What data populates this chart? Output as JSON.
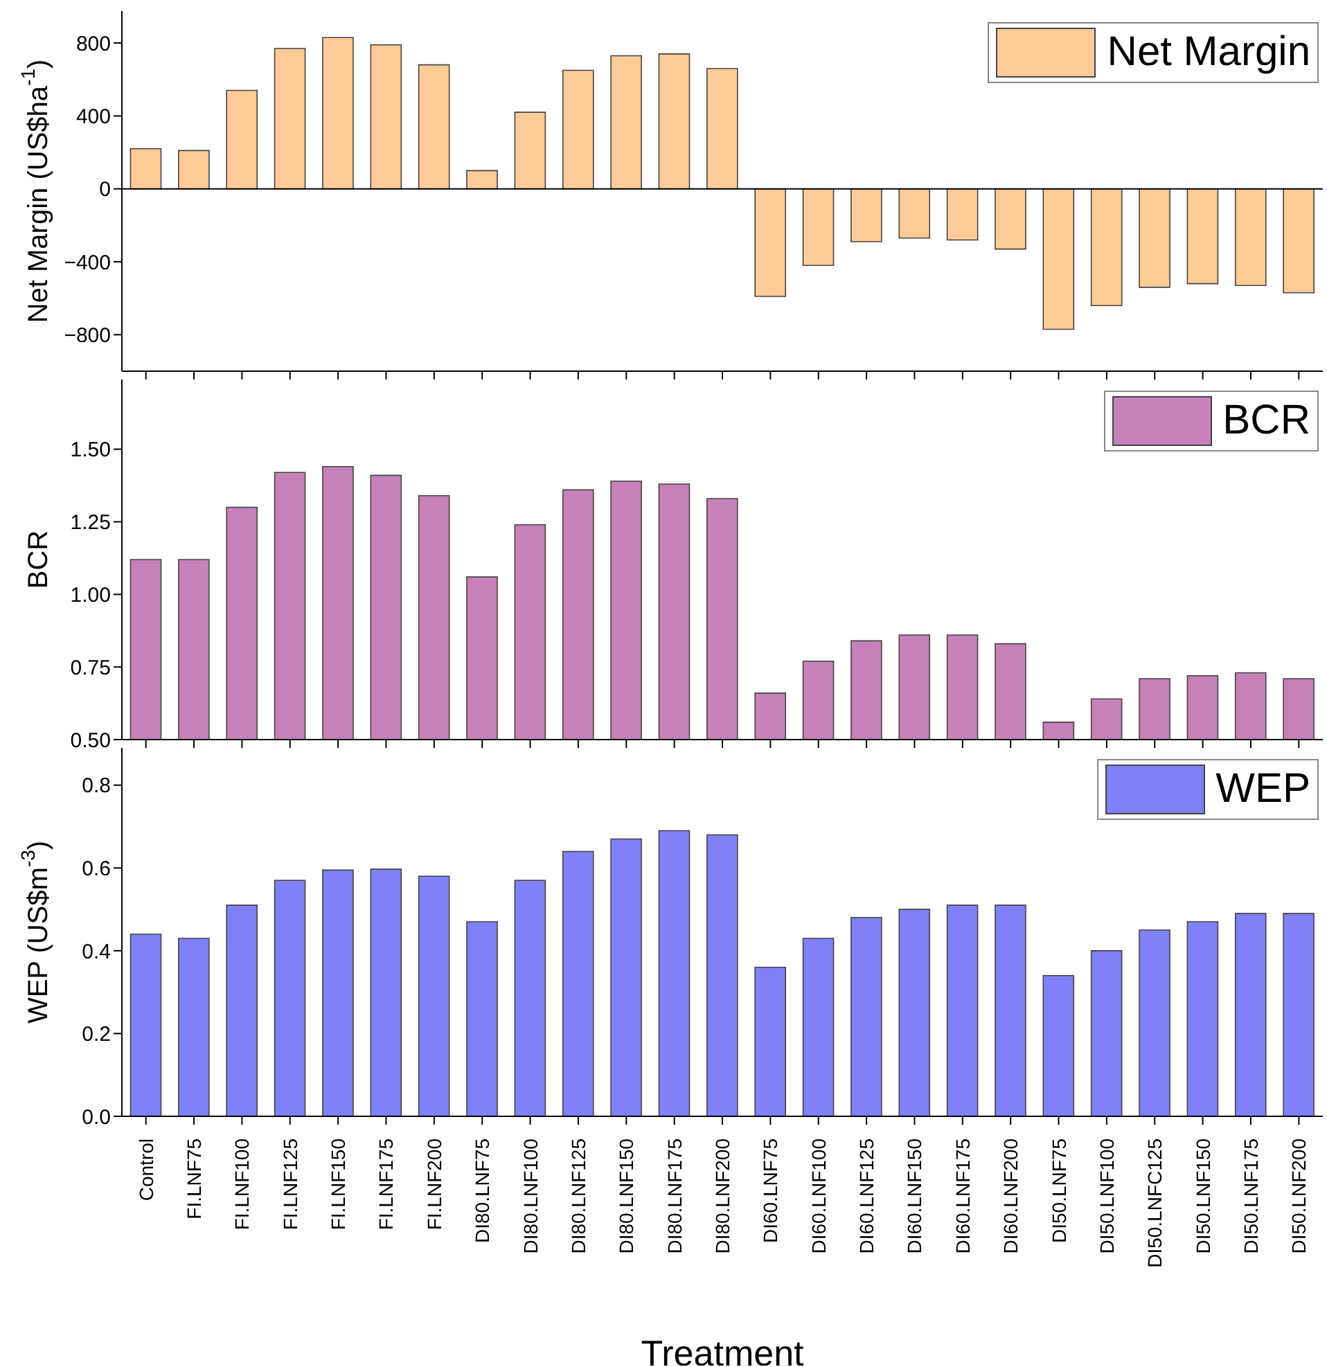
{
  "chart_data": [
    {
      "type": "bar",
      "ylabel": "Net Margin (US$ha$^{-1}$)",
      "categories": [
        null,
        null,
        null,
        null,
        null,
        null,
        null,
        null,
        null,
        null,
        null,
        null,
        null,
        null,
        null,
        null,
        null,
        null,
        null,
        null,
        null,
        null,
        null,
        null,
        null
      ],
      "series": [
        {
          "name": "Net Margin",
          "color": "#ffcb96",
          "values": [
            220,
            210,
            540,
            770,
            830,
            790,
            680,
            100,
            420,
            650,
            730,
            740,
            660,
            -590,
            -420,
            -290,
            -270,
            -280,
            -330,
            -770,
            -640,
            -540,
            -520,
            -530,
            -570
          ]
        }
      ],
      "ylim": [
        -1000,
        975
      ],
      "yticks": [
        {
          "value": -800,
          "label": "−800"
        },
        {
          "value": -400,
          "label": "−400"
        },
        0,
        400,
        800
      ],
      "ref_lines": [
        {
          "axis": "y",
          "value": 0
        }
      ],
      "legend": "top right",
      "tick_labels": "y"
    },
    {
      "type": "bar",
      "ylabel": "BCR",
      "categories": [
        null,
        null,
        null,
        null,
        null,
        null,
        null,
        null,
        null,
        null,
        null,
        null,
        null,
        null,
        null,
        null,
        null,
        null,
        null,
        null,
        null,
        null,
        null,
        null,
        null
      ],
      "series": [
        {
          "name": "BCR",
          "color": "#c681b8",
          "values": [
            1.12,
            1.12,
            1.3,
            1.42,
            1.44,
            1.41,
            1.34,
            1.06,
            1.24,
            1.36,
            1.39,
            1.38,
            1.33,
            0.66,
            0.77,
            0.84,
            0.86,
            0.86,
            0.83,
            0.56,
            0.64,
            0.71,
            0.72,
            0.73,
            0.71
          ]
        }
      ],
      "ylim": [
        0.5,
        1.74
      ],
      "yticks": [
        {
          "value": 0.5,
          "label": "0.50"
        },
        {
          "value": 0.75,
          "label": "0.75"
        },
        {
          "value": 1,
          "label": "1.00"
        },
        {
          "value": 1.25,
          "label": "1.25"
        },
        {
          "value": 1.5,
          "label": "1.50"
        }
      ],
      "legend": "top right",
      "tick_labels": "y"
    },
    {
      "type": "bar",
      "xlabel": "Treatment",
      "ylabel": "WEP (US$m$^{-3}$)",
      "categories": [
        "Control",
        "FI.LNF75",
        "FI.LNF100",
        "FI.LNF125",
        "FI.LNF150",
        "FI.LNF175",
        "FI.LNF200",
        "DI80.LNF75",
        "DI80.LNF100",
        "DI80.LNF125",
        "DI80.LNF150",
        "DI80.LNF175",
        "DI80.LNF200",
        "DI60.LNF75",
        "DI60.LNF100",
        "DI60.LNF125",
        "DI60.LNF150",
        "DI60.LNF175",
        "DI60.LNF200",
        "DI50.LNF75",
        "DI50.LNF100",
        "DI50.LNFC125",
        "DI50.LNF150",
        "DI50.LNF175",
        "DI50.LNF200"
      ],
      "series": [
        {
          "name": "WEP",
          "color": "#8080f7",
          "values": [
            0.44,
            0.43,
            0.51,
            0.57,
            0.595,
            0.597,
            0.58,
            0.47,
            0.57,
            0.64,
            0.67,
            0.69,
            0.68,
            0.36,
            0.43,
            0.48,
            0.5,
            0.51,
            0.51,
            0.34,
            0.4,
            0.45,
            0.47,
            0.49,
            0.49
          ]
        }
      ],
      "ylim": [
        0,
        0.89
      ],
      "yticks": [
        {
          "value": 0,
          "label": "0.0"
        },
        {
          "value": 0.2,
          "label": "0.2"
        },
        {
          "value": 0.4,
          "label": "0.4"
        },
        {
          "value": 0.6,
          "label": "0.6"
        },
        {
          "value": 0.8,
          "label": "0.8"
        }
      ],
      "legend": "top right"
    }
  ]
}
